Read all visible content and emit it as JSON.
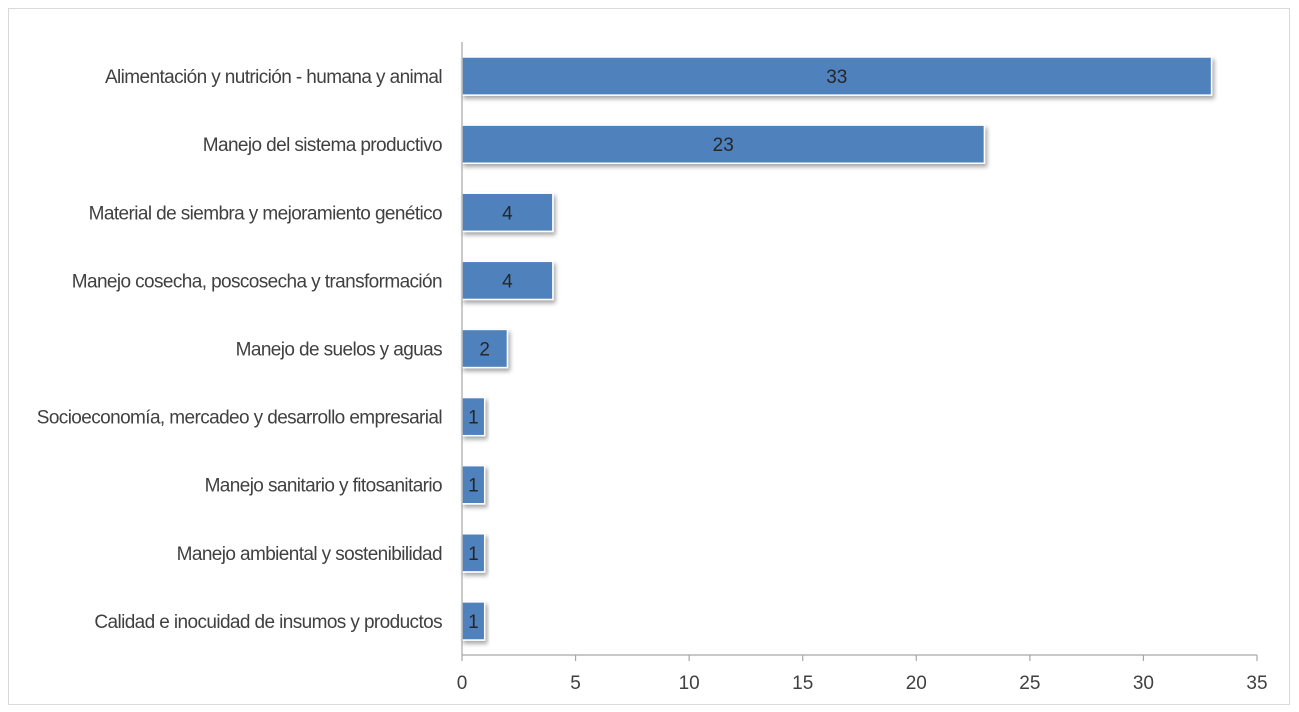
{
  "chart_data": {
    "type": "bar",
    "orientation": "horizontal",
    "categories": [
      "Alimentación y nutrición - humana y animal",
      "Manejo del sistema productivo",
      "Material de siembra y mejoramiento genético",
      "Manejo cosecha, poscosecha y transformación",
      "Manejo de suelos y aguas",
      "Socioeconomía, mercadeo y desarrollo empresarial",
      "Manejo sanitario y fitosanitario",
      "Manejo ambiental y sostenibilidad",
      "Calidad e inocuidad de insumos y productos"
    ],
    "values": [
      33,
      23,
      4,
      4,
      2,
      1,
      1,
      1,
      1
    ],
    "xlim": [
      0,
      35
    ],
    "xticks": [
      0,
      5,
      10,
      15,
      20,
      25,
      30,
      35
    ],
    "grid": false,
    "legend": "none",
    "bar_color": "#4f81bd",
    "bar_border_color": "#ffffff"
  }
}
